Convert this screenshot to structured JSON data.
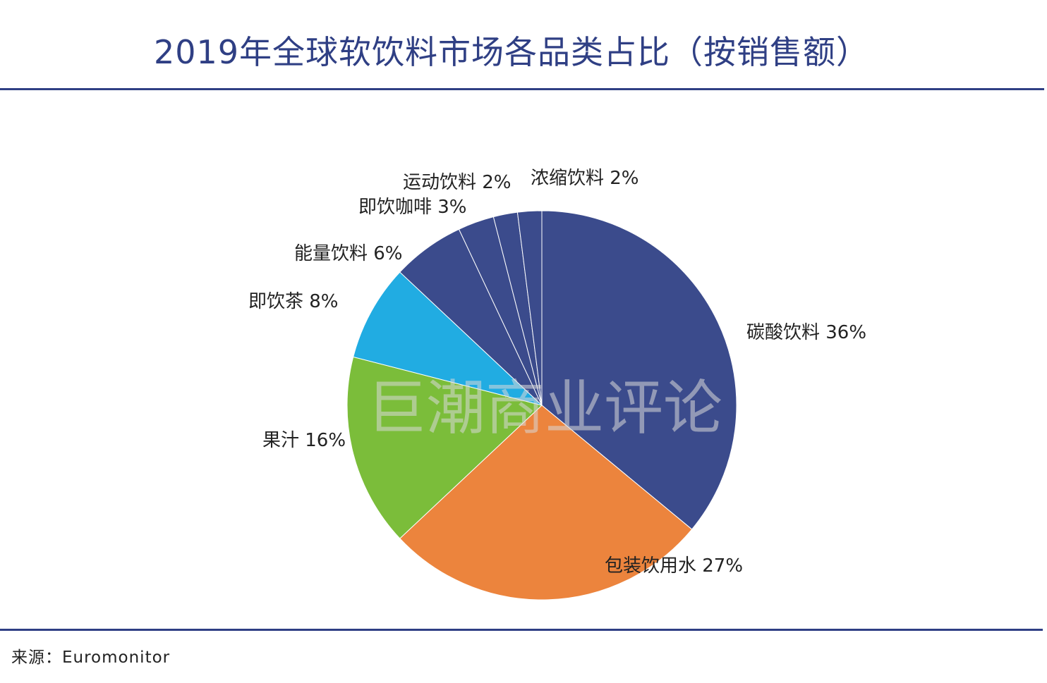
{
  "title": "2019年全球软饮料市场各品类占比（按销售额）",
  "source": "来源：Euromonitor",
  "watermark": "巨潮商业评论",
  "colors": {
    "accent": "#2f3f84"
  },
  "chart_data": {
    "type": "pie",
    "title": "2019年全球软饮料市场各品类占比（按销售额）",
    "slices": [
      {
        "name": "碳酸饮料",
        "value": 36,
        "label": "碳酸饮料 36%",
        "color": "#3b4b8c"
      },
      {
        "name": "包装饮用水",
        "value": 27,
        "label": "包装饮用水 27%",
        "color": "#ec843d"
      },
      {
        "name": "果汁",
        "value": 16,
        "label": "果汁 16%",
        "color": "#7bbd3a"
      },
      {
        "name": "即饮茶",
        "value": 8,
        "label": "即饮茶 8%",
        "color": "#21ace2"
      },
      {
        "name": "能量饮料",
        "value": 6,
        "label": "能量饮料 6%",
        "color": "#3b4b8c"
      },
      {
        "name": "即饮咖啡",
        "value": 3,
        "label": "即饮咖啡 3%",
        "color": "#3b4b8c"
      },
      {
        "name": "运动饮料",
        "value": 2,
        "label": "运动饮料 2%",
        "color": "#3b4b8c"
      },
      {
        "name": "浓缩饮料",
        "value": 2,
        "label": "浓缩饮料 2%",
        "color": "#3b4b8c"
      }
    ]
  }
}
